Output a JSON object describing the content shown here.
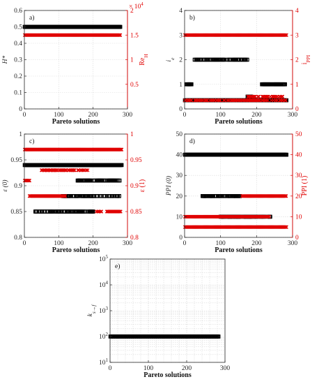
{
  "chart_data": [
    {
      "id": "a",
      "type": "scatter",
      "panel_label": "a)",
      "xlabel": "Pareto solutions",
      "xlim": [
        0,
        300
      ],
      "xticks": [
        "0",
        "100",
        "200",
        "300"
      ],
      "left_axis": {
        "label": "H*",
        "ylim": [
          0,
          0.6
        ],
        "ticks": [
          "0",
          "0.1",
          "0.2",
          "0.3",
          "0.4",
          "0.5",
          "0.6"
        ]
      },
      "right_axis": {
        "label": "Re_H",
        "exponent_label": "× 10^4",
        "ylim": [
          0,
          2
        ],
        "ticks": [
          "0.5",
          "1",
          "1.5",
          "2"
        ]
      },
      "series": [
        {
          "axis": "left",
          "color": "#000000",
          "marker": "square",
          "segments": [
            {
              "y": 0.5,
              "x_from": 1,
              "x_to": 280,
              "density": 1
            }
          ]
        },
        {
          "axis": "right",
          "color": "#e00000",
          "marker": "x",
          "segments": [
            {
              "y": 1.5,
              "x_from": 1,
              "x_to": 280,
              "density": 1
            }
          ]
        }
      ]
    },
    {
      "id": "b",
      "type": "scatter",
      "panel_label": "b)",
      "xlabel": "Pareto solutions",
      "xlim": [
        0,
        300
      ],
      "xticks": [
        "0",
        "100",
        "200",
        "300"
      ],
      "left_axis": {
        "label": "i_e",
        "ylim": [
          0,
          4
        ],
        "ticks": [
          "0",
          "1",
          "2",
          "3",
          "4"
        ]
      },
      "right_axis": {
        "label": "i_PPI",
        "ylim": [
          0,
          4
        ],
        "ticks": [
          "0",
          "1",
          "2",
          "3",
          "4"
        ]
      },
      "series": [
        {
          "axis": "left",
          "color": "#000000",
          "marker": "square",
          "segments": [
            {
              "y": 0.35,
              "x_from": 1,
              "x_to": 283,
              "density": 1
            },
            {
              "y": 1,
              "x_from": 5,
              "x_to": 20,
              "density": 0.9
            },
            {
              "y": 1,
              "x_from": 215,
              "x_to": 280,
              "density": 0.85
            },
            {
              "y": 2,
              "x_from": 28,
              "x_to": 175,
              "density": 0.6
            },
            {
              "y": 0.5,
              "x_from": 175,
              "x_to": 185,
              "density": 1
            }
          ]
        },
        {
          "axis": "right",
          "color": "#e00000",
          "marker": "x",
          "segments": [
            {
              "y": 3,
              "x_from": 1,
              "x_to": 283,
              "density": 1
            },
            {
              "y": 0.5,
              "x_from": 170,
              "x_to": 275,
              "density": 0.6
            },
            {
              "y": 0.35,
              "x_from": 1,
              "x_to": 283,
              "density": 0.5
            }
          ]
        }
      ]
    },
    {
      "id": "c",
      "type": "scatter",
      "panel_label": "c)",
      "xlabel": "Pareto solutions",
      "xlim": [
        0,
        300
      ],
      "xticks": [
        "0",
        "100",
        "200",
        "300"
      ],
      "left_axis": {
        "label": "ε (0)",
        "ylim": [
          0.8,
          1
        ],
        "ticks": [
          "0.8",
          "0.85",
          "0.9",
          "0.95",
          "1"
        ]
      },
      "right_axis": {
        "label": "ε (1)",
        "ylim": [
          0.8,
          1
        ],
        "ticks": [
          "0.8",
          "0.85",
          "0.9",
          "0.95",
          "1"
        ]
      },
      "series": [
        {
          "axis": "left",
          "color": "#000000",
          "marker": "square",
          "segments": [
            {
              "y": 0.94,
              "x_from": 1,
              "x_to": 283,
              "density": 1
            },
            {
              "y": 0.91,
              "x_from": 155,
              "x_to": 278,
              "density": 0.7
            },
            {
              "y": 0.88,
              "x_from": 110,
              "x_to": 278,
              "density": 0.55
            },
            {
              "y": 0.85,
              "x_from": 30,
              "x_to": 200,
              "density": 0.6
            }
          ]
        },
        {
          "axis": "right",
          "color": "#e00000",
          "marker": "x",
          "segments": [
            {
              "y": 0.97,
              "x_from": 1,
              "x_to": 283,
              "density": 1
            },
            {
              "y": 0.93,
              "x_from": 50,
              "x_to": 185,
              "density": 0.6
            },
            {
              "y": 0.91,
              "x_from": 1,
              "x_to": 15,
              "density": 1
            },
            {
              "y": 0.88,
              "x_from": 15,
              "x_to": 120,
              "density": 1
            },
            {
              "y": 0.85,
              "x_from": 240,
              "x_to": 280,
              "density": 1
            },
            {
              "y": 0.85,
              "x_from": 210,
              "x_to": 225,
              "density": 0.7
            }
          ]
        }
      ]
    },
    {
      "id": "d",
      "type": "scatter",
      "panel_label": "d)",
      "xlabel": "Pareto solutions",
      "xlim": [
        0,
        300
      ],
      "xticks": [
        "0",
        "100",
        "200",
        "300"
      ],
      "left_axis": {
        "label": "PPI (0)",
        "ylim": [
          0,
          50
        ],
        "ticks": [
          "0",
          "10",
          "20",
          "30",
          "40",
          "50"
        ]
      },
      "right_axis": {
        "label": "PPI (1)",
        "ylim": [
          0,
          50
        ],
        "ticks": [
          "0",
          "10",
          "20",
          "30",
          "40",
          "50"
        ]
      },
      "series": [
        {
          "axis": "left",
          "color": "#000000",
          "marker": "square",
          "segments": [
            {
              "y": 40,
              "x_from": 1,
              "x_to": 283,
              "density": 1
            },
            {
              "y": 20,
              "x_from": 50,
              "x_to": 160,
              "density": 0.6
            },
            {
              "y": 10,
              "x_from": 100,
              "x_to": 240,
              "density": 0.6
            }
          ]
        },
        {
          "axis": "right",
          "color": "#e00000",
          "marker": "x",
          "segments": [
            {
              "y": 20,
              "x_from": 160,
              "x_to": 283,
              "density": 1
            },
            {
              "y": 10,
              "x_from": 1,
              "x_to": 235,
              "density": 1
            },
            {
              "y": 5,
              "x_from": 1,
              "x_to": 283,
              "density": 1
            }
          ]
        }
      ]
    },
    {
      "id": "e",
      "type": "scatter",
      "panel_label": "e)",
      "xlabel": "Pareto solutions",
      "xlim": [
        0,
        300
      ],
      "xticks": [
        "0",
        "100",
        "200",
        "300"
      ],
      "left_axis": {
        "label": "k_s→f",
        "log": true,
        "ylim": [
          10,
          100000
        ],
        "ticks": [
          "10^1",
          "10^2",
          "10^3",
          "10^4",
          "10^5"
        ]
      },
      "series": [
        {
          "axis": "left",
          "color": "#000000",
          "marker": "square",
          "segments": [
            {
              "y": 100,
              "x_from": 1,
              "x_to": 283,
              "density": 1
            }
          ]
        }
      ]
    }
  ]
}
